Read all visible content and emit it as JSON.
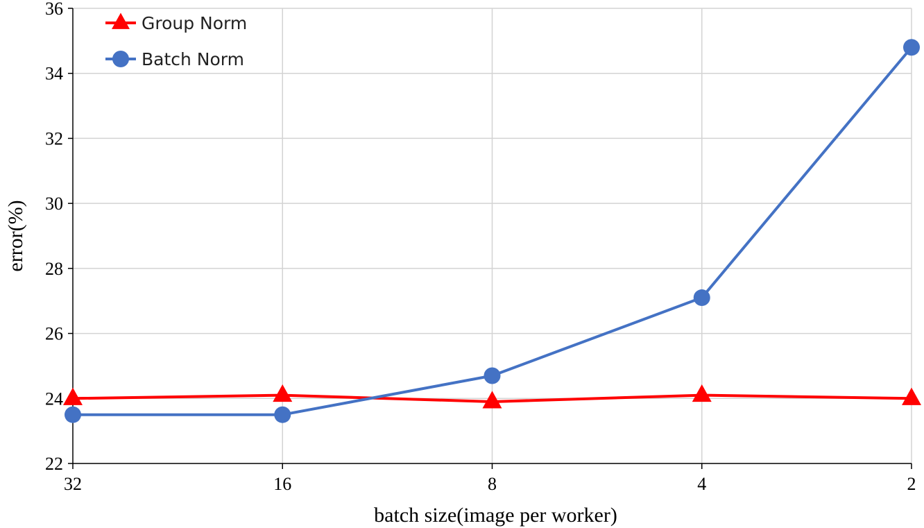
{
  "chart_data": {
    "type": "line",
    "title": "",
    "xlabel": "batch size(image per worker)",
    "ylabel": "error(%)",
    "categories": [
      "32",
      "16",
      "8",
      "4",
      "2"
    ],
    "ylim": [
      22,
      36
    ],
    "yticks": [
      22,
      24,
      26,
      28,
      30,
      32,
      34,
      36
    ],
    "grid": true,
    "legend_position": "top-left",
    "series": [
      {
        "name": "Group Norm",
        "values": [
          24.0,
          24.1,
          23.9,
          24.1,
          24.0
        ],
        "color": "#ff0000",
        "marker": "triangle"
      },
      {
        "name": "Batch Norm",
        "values": [
          23.5,
          23.5,
          24.7,
          27.1,
          34.8
        ],
        "color": "#4472c4",
        "marker": "circle"
      }
    ]
  }
}
